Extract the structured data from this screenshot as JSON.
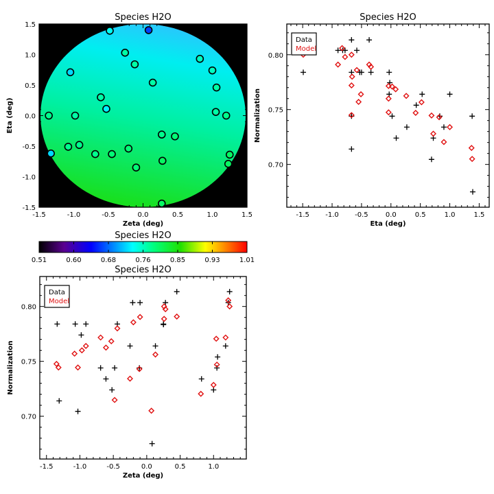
{
  "colors": {
    "data": "#000000",
    "model": "#e01010",
    "background": "#000000"
  },
  "chart_data": [
    {
      "type": "scatter",
      "title": "Species H2O",
      "xlabel": "Zeta (deg)",
      "ylabel": "Eta (deg)",
      "xlim": [
        -1.5,
        1.5
      ],
      "ylim": [
        -1.5,
        1.5
      ],
      "xticks": [
        "-1.5",
        "-1.0",
        "-0.5",
        "0.0",
        "0.5",
        "1.0",
        "1.5"
      ],
      "yticks": [
        "-1.5",
        "-1.0",
        "-0.5",
        "0.0",
        "0.5",
        "1.0",
        "1.5"
      ],
      "points": [
        {
          "zeta": -0.48,
          "eta": 1.39,
          "value": 0.74
        },
        {
          "zeta": 0.08,
          "eta": 1.4,
          "value": 0.66
        },
        {
          "zeta": -0.26,
          "eta": 1.03,
          "value": 0.77
        },
        {
          "zeta": -0.12,
          "eta": 0.84,
          "value": 0.77
        },
        {
          "zeta": 0.82,
          "eta": 0.93,
          "value": 0.76
        },
        {
          "zeta": 1.0,
          "eta": 0.74,
          "value": 0.76
        },
        {
          "zeta": -1.05,
          "eta": 0.71,
          "value": 0.72
        },
        {
          "zeta": 0.14,
          "eta": 0.54,
          "value": 0.77
        },
        {
          "zeta": 1.06,
          "eta": 0.46,
          "value": 0.77
        },
        {
          "zeta": -0.61,
          "eta": 0.3,
          "value": 0.77
        },
        {
          "zeta": -0.53,
          "eta": 0.11,
          "value": 0.73
        },
        {
          "zeta": -1.36,
          "eta": 0.0,
          "value": 0.78
        },
        {
          "zeta": -0.98,
          "eta": 0.0,
          "value": 0.77
        },
        {
          "zeta": 1.05,
          "eta": 0.06,
          "value": 0.77
        },
        {
          "zeta": 1.2,
          "eta": 0.0,
          "value": 0.78
        },
        {
          "zeta": 0.27,
          "eta": -0.31,
          "value": 0.78
        },
        {
          "zeta": 0.46,
          "eta": -0.34,
          "value": 0.79
        },
        {
          "zeta": -1.08,
          "eta": -0.51,
          "value": 0.78
        },
        {
          "zeta": -0.92,
          "eta": -0.48,
          "value": 0.78
        },
        {
          "zeta": -1.33,
          "eta": -0.62,
          "value": 0.72
        },
        {
          "zeta": -0.69,
          "eta": -0.63,
          "value": 0.78
        },
        {
          "zeta": -0.45,
          "eta": -0.63,
          "value": 0.79
        },
        {
          "zeta": -0.21,
          "eta": -0.54,
          "value": 0.79
        },
        {
          "zeta": 0.28,
          "eta": -0.74,
          "value": 0.8
        },
        {
          "zeta": -0.1,
          "eta": -0.85,
          "value": 0.79
        },
        {
          "zeta": 1.25,
          "eta": -0.64,
          "value": 0.8
        },
        {
          "zeta": 1.23,
          "eta": -0.79,
          "value": 0.8
        },
        {
          "zeta": 0.27,
          "eta": -1.44,
          "value": 0.8
        }
      ]
    },
    {
      "type": "colorbar",
      "title": "Species H2O",
      "range": [
        0.51,
        1.01
      ],
      "ticks": [
        "0.51",
        "0.60",
        "0.68",
        "0.76",
        "0.85",
        "0.93",
        "1.01"
      ]
    },
    {
      "type": "scatter",
      "title": "Species H2O",
      "xlabel": "Eta (deg)",
      "ylabel": "Normalization",
      "xlim": [
        -1.77,
        1.67
      ],
      "ylim": [
        0.661,
        0.828
      ],
      "xticks": [
        "-1.5",
        "-1.0",
        "-0.5",
        "0.0",
        "0.5",
        "1.0",
        "1.5"
      ],
      "yticks": [
        "0.70",
        "0.75",
        "0.80"
      ],
      "legend": [
        "Data",
        "Model"
      ],
      "legend_position": "top-left",
      "series": [
        {
          "name": "Data",
          "marker": "plus",
          "x": [
            -0.67,
            -0.37,
            -0.9,
            -0.82,
            -0.78,
            -0.58,
            -1.49,
            -0.67,
            -0.53,
            -0.5,
            -0.34,
            -0.03,
            -0.02,
            -0.03,
            0.53,
            1.0,
            0.43,
            -0.67,
            0.02,
            0.83,
            1.38,
            0.27,
            0.9,
            0.09,
            0.72,
            -0.67,
            0.69,
            1.39
          ],
          "y": [
            0.8135,
            0.8135,
            0.804,
            0.804,
            0.804,
            0.804,
            0.784,
            0.784,
            0.784,
            0.784,
            0.784,
            0.784,
            0.7745,
            0.764,
            0.764,
            0.764,
            0.754,
            0.744,
            0.744,
            0.744,
            0.744,
            0.734,
            0.734,
            0.724,
            0.724,
            0.714,
            0.7046,
            0.675
          ]
        },
        {
          "name": "Model",
          "marker": "diamond",
          "x": [
            -1.49,
            -0.83,
            -0.9,
            -0.78,
            -0.67,
            -0.66,
            -0.67,
            -0.58,
            -0.51,
            -0.55,
            -0.67,
            -0.37,
            -0.34,
            -0.04,
            -0.04,
            -0.04,
            0.02,
            0.08,
            0.26,
            0.42,
            0.52,
            0.69,
            0.82,
            0.72,
            0.9,
            1.0,
            1.37,
            1.38
          ],
          "y": [
            0.8,
            0.806,
            0.791,
            0.798,
            0.8,
            0.78,
            0.772,
            0.786,
            0.764,
            0.757,
            0.745,
            0.791,
            0.789,
            0.7715,
            0.76,
            0.7475,
            0.771,
            0.7685,
            0.7625,
            0.747,
            0.7567,
            0.7446,
            0.743,
            0.728,
            0.7204,
            0.734,
            0.715,
            0.705
          ]
        }
      ]
    },
    {
      "type": "scatter",
      "title": "Species H2O",
      "xlabel": "Zeta (deg)",
      "ylabel": "Normalization",
      "xlim": [
        -1.6,
        1.49
      ],
      "ylim": [
        0.661,
        0.8273
      ],
      "xticks": [
        "-1.5",
        "-1.0",
        "-0.5",
        "0.0",
        "0.5",
        "1.0"
      ],
      "yticks": [
        "0.70",
        "0.75",
        "0.80"
      ],
      "legend": [
        "Data",
        "Model"
      ],
      "legend_position": "top-left",
      "series": [
        {
          "name": "Data",
          "marker": "plus",
          "x": [
            -1.34,
            -1.07,
            -0.91,
            -0.44,
            -0.98,
            -0.21,
            -0.1,
            0.28,
            0.45,
            1.24,
            1.22,
            0.25,
            0.25,
            -0.25,
            0.13,
            1.18,
            1.06,
            -0.69,
            -0.48,
            -0.11,
            1.05,
            -0.61,
            0.82,
            -0.52,
            1.0,
            -1.31,
            -1.03,
            0.08
          ],
          "y": [
            0.784,
            0.784,
            0.784,
            0.784,
            0.774,
            0.8035,
            0.8035,
            0.8035,
            0.8135,
            0.8135,
            0.8035,
            0.784,
            0.7835,
            0.764,
            0.764,
            0.764,
            0.754,
            0.744,
            0.744,
            0.744,
            0.744,
            0.734,
            0.734,
            0.724,
            0.724,
            0.714,
            0.7044,
            0.675
          ]
        },
        {
          "name": "Model",
          "marker": "diamond",
          "x": [
            -1.35,
            -1.32,
            -1.08,
            -1.03,
            -0.97,
            -0.91,
            -0.69,
            -0.61,
            -0.53,
            -0.44,
            -0.48,
            -0.25,
            -0.2,
            -0.1,
            -0.11,
            0.13,
            0.07,
            0.26,
            0.28,
            0.26,
            0.45,
            0.81,
            1.0,
            1.04,
            1.05,
            1.18,
            1.22,
            1.24
          ],
          "y": [
            0.7477,
            0.7444,
            0.757,
            0.7444,
            0.76,
            0.764,
            0.7717,
            0.7625,
            0.7683,
            0.78,
            0.7148,
            0.7342,
            0.7856,
            0.7904,
            0.743,
            0.7562,
            0.705,
            0.8,
            0.7975,
            0.7887,
            0.7908,
            0.7204,
            0.7285,
            0.7706,
            0.747,
            0.7717,
            0.8056,
            0.8
          ]
        }
      ]
    }
  ]
}
